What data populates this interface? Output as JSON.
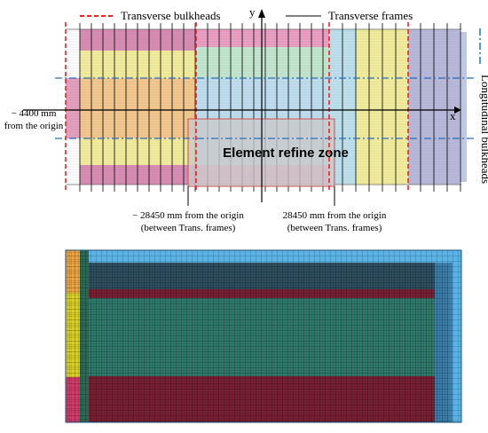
{
  "legend": {
    "bulkheads": "Transverse bulkheads",
    "frames": "Transverse frames",
    "longitudinal": "Longitudinal bulkheads"
  },
  "axes": {
    "x": "x",
    "y": "y"
  },
  "annotations": {
    "left_offset": "− 4400 mm",
    "left_offset_sub": "from the origin",
    "neg_station": "− 28450 mm from the origin",
    "neg_station_sub": "(between Trans. frames)",
    "pos_station": "28450 mm from the origin",
    "pos_station_sub": "(between Trans. frames)",
    "refine_zone": "Element refine zone"
  },
  "colors": {
    "bulkhead": "#e8232a",
    "longitudinal": "#2a6fc0",
    "refine_box": "#d04a4a",
    "refine_fill": "#c9c9c9",
    "pink": "#d979a6",
    "yellow": "#f3ee9c",
    "orange": "#f6c98e",
    "green": "#c4e8cf",
    "light_blue": "#c0dff0",
    "cyan": "#bfe2ee",
    "lavender": "#b9b9dd",
    "mesh_blue": "#5ab3e6",
    "mesh_teal": "#2f7c6c",
    "mesh_maroon": "#7b1f33",
    "mesh_yellow": "#dcd21e",
    "mesh_orange": "#f0a53a",
    "mesh_pink": "#d73a6a"
  }
}
